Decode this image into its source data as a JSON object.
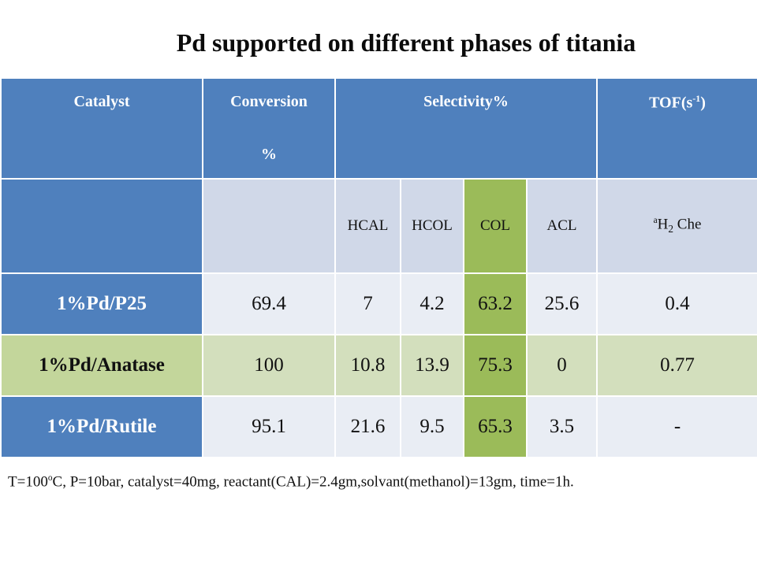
{
  "title": "Pd supported on different phases of titania",
  "header": {
    "catalyst": "Catalyst",
    "conversion_line1": "Conversion",
    "conversion_line2": "%",
    "selectivity": "Selectivity%",
    "tof_base": "TOF(s",
    "tof_sup": "-1",
    "tof_end": ")"
  },
  "subheader": {
    "hcal": "HCAL",
    "hcol": "HCOL",
    "col": "COL",
    "acl": "ACL",
    "h2che_prefix": "a",
    "h2che_h": "H",
    "h2che_sub": "2",
    "h2che_rest": " Che"
  },
  "rows": [
    {
      "catalyst": "1%Pd/P25",
      "conversion": "69.4",
      "hcal": "7",
      "hcol": "4.2",
      "col": "63.2",
      "acl": "25.6",
      "h2che": "0.4"
    },
    {
      "catalyst": "1%Pd/Anatase",
      "conversion": "100",
      "hcal": "10.8",
      "hcol": "13.9",
      "col": "75.3",
      "acl": "0",
      "h2che": "0.77"
    },
    {
      "catalyst": "1%Pd/Rutile",
      "conversion": "95.1",
      "hcal": "21.6",
      "hcol": "9.5",
      "col": "65.3",
      "acl": "3.5",
      "h2che": "-"
    }
  ],
  "footnote": {
    "part1": "T=100",
    "sup": "o",
    "part2": "C, P=10bar, catalyst=40mg, reactant(CAL)=2.4gm,solvant(methanol)=13gm, time=1h."
  },
  "colors": {
    "header_blue": "#4f80bd",
    "light_blue": "#d0d8e8",
    "row_light": "#e9edf4",
    "green_dark": "#9bbb59",
    "green_light": "#d3dfbd"
  }
}
